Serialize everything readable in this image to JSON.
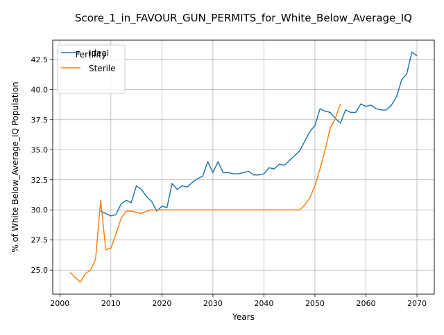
{
  "chart_data": {
    "type": "line",
    "title": "Score_1_in_FAVOUR_GUN_PERMITS_for_White_Below_Average_IQ",
    "xlabel": "Years",
    "ylabel": "% of White Below_Average_IQ Population",
    "xlim": [
      1998.6,
      2073.4
    ],
    "ylim": [
      23.0,
      44.1
    ],
    "x_ticks": [
      2000,
      2010,
      2020,
      2030,
      2040,
      2050,
      2060,
      2070
    ],
    "y_ticks": [
      25.0,
      27.5,
      30.0,
      32.5,
      35.0,
      37.5,
      40.0,
      42.5
    ],
    "grid": true,
    "legend": {
      "title": "Fertility",
      "placement": "top-left"
    },
    "series": [
      {
        "name": "Ideal",
        "color": "#1f77b4",
        "x": [
          2008,
          2009,
          2010,
          2011,
          2012,
          2013,
          2014,
          2015,
          2016,
          2017,
          2018,
          2019,
          2020,
          2021,
          2022,
          2023,
          2024,
          2025,
          2026,
          2027,
          2028,
          2029,
          2030,
          2031,
          2032,
          2033,
          2034,
          2035,
          2036,
          2037,
          2038,
          2039,
          2040,
          2041,
          2042,
          2043,
          2044,
          2045,
          2046,
          2047,
          2048,
          2049,
          2050,
          2051,
          2052,
          2053,
          2054,
          2055,
          2056,
          2057,
          2058,
          2059,
          2060,
          2061,
          2062,
          2063,
          2064,
          2065,
          2066,
          2067,
          2068,
          2069,
          2070
        ],
        "y": [
          29.9,
          29.7,
          29.5,
          29.6,
          30.5,
          30.8,
          30.6,
          32.0,
          31.7,
          31.1,
          30.7,
          29.9,
          30.3,
          30.2,
          32.2,
          31.7,
          32.0,
          31.9,
          32.3,
          32.6,
          32.8,
          34.0,
          33.1,
          34.0,
          33.1,
          33.1,
          33.0,
          33.0,
          33.1,
          33.2,
          32.9,
          32.9,
          33.0,
          33.5,
          33.4,
          33.8,
          33.7,
          34.1,
          34.5,
          34.9,
          35.7,
          36.5,
          37.0,
          38.4,
          38.2,
          38.1,
          37.6,
          37.2,
          38.3,
          38.1,
          38.1,
          38.8,
          38.6,
          38.7,
          38.4,
          38.3,
          38.3,
          38.7,
          39.4,
          40.8,
          41.3,
          43.1,
          42.8
        ]
      },
      {
        "name": "Sterile",
        "color": "#ff7f0e",
        "x": [
          2002,
          2003,
          2004,
          2005,
          2006,
          2007,
          2008,
          2009,
          2010,
          2011,
          2012,
          2013,
          2014,
          2015,
          2016,
          2017,
          2018,
          2019,
          2020,
          2021,
          2022,
          2023,
          2024,
          2025,
          2026,
          2027,
          2028,
          2029,
          2030,
          2031,
          2032,
          2033,
          2034,
          2035,
          2036,
          2037,
          2038,
          2039,
          2040,
          2041,
          2042,
          2043,
          2044,
          2045,
          2046,
          2047,
          2048,
          2049,
          2050,
          2051,
          2052,
          2053,
          2054,
          2055
        ],
        "y": [
          24.8,
          24.4,
          24.0,
          24.7,
          25.0,
          25.9,
          30.8,
          26.7,
          26.8,
          28.0,
          29.3,
          29.9,
          29.9,
          29.8,
          29.7,
          29.9,
          30.0,
          30.0,
          30.0,
          30.0,
          30.0,
          30.0,
          30.0,
          30.0,
          30.0,
          30.0,
          30.0,
          30.0,
          30.0,
          30.0,
          30.0,
          30.0,
          30.0,
          30.0,
          30.0,
          30.0,
          30.0,
          30.0,
          30.0,
          30.0,
          30.0,
          30.0,
          30.0,
          30.0,
          30.0,
          30.0,
          30.4,
          31.0,
          32.0,
          33.4,
          35.0,
          36.8,
          37.6,
          38.8
        ]
      }
    ]
  }
}
